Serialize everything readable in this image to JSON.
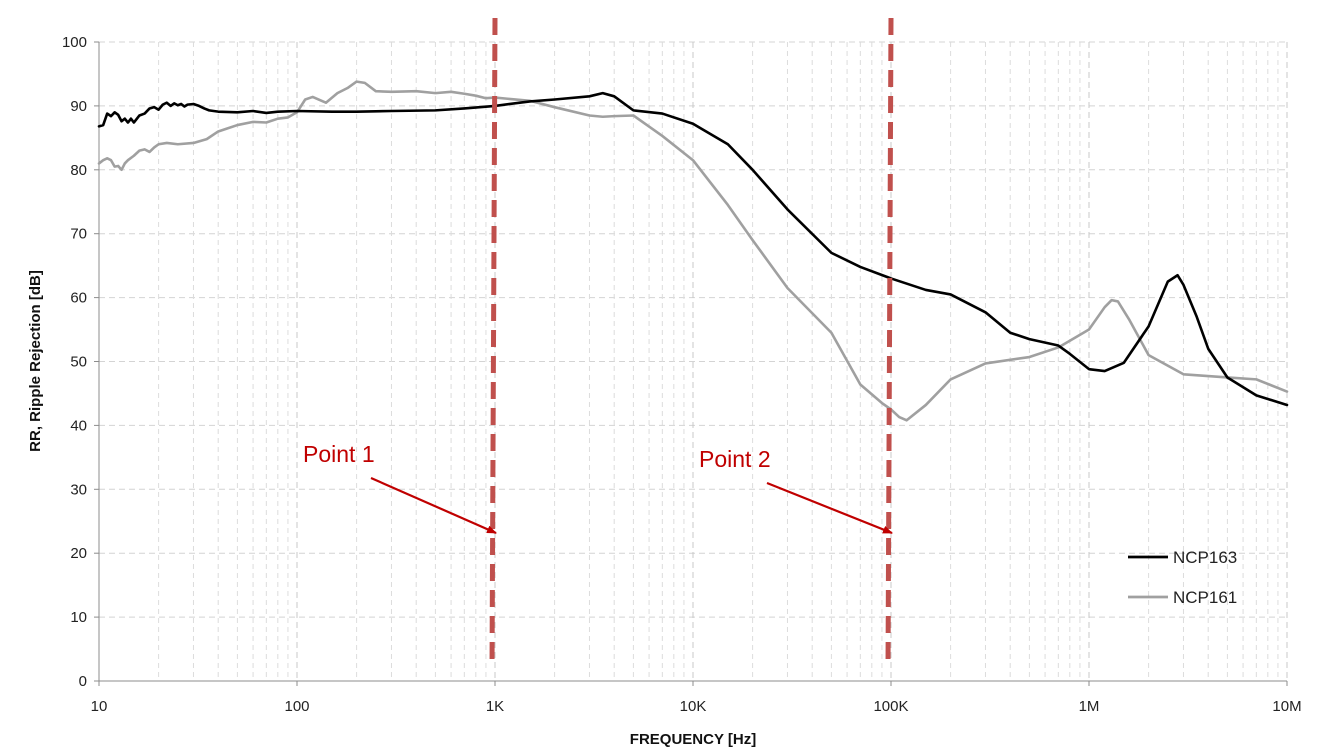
{
  "chart_data": {
    "type": "line",
    "title": "",
    "xlabel": "FREQUENCY [Hz]",
    "ylabel": "RR, Ripple Rejection [dB]",
    "xscale": "log",
    "xlim": [
      10,
      10000000
    ],
    "ylim": [
      0,
      100
    ],
    "x_tick_labels": [
      {
        "value": 10,
        "label": "10"
      },
      {
        "value": 100,
        "label": "100"
      },
      {
        "value": 1000,
        "label": "1K"
      },
      {
        "value": 10000,
        "label": "10K"
      },
      {
        "value": 100000,
        "label": "100K"
      },
      {
        "value": 1000000,
        "label": "1M"
      },
      {
        "value": 10000000,
        "label": "10M"
      }
    ],
    "y_ticks": [
      0,
      10,
      20,
      30,
      40,
      50,
      60,
      70,
      80,
      90,
      100
    ],
    "grid": true,
    "legend_position": "bottom-right",
    "series": [
      {
        "name": "NCP163",
        "color": "#000000",
        "x": [
          10,
          10.5,
          11,
          11.5,
          12,
          12.5,
          13,
          13.5,
          14,
          14.5,
          15,
          16,
          17,
          18,
          19,
          20,
          21,
          22,
          23,
          24,
          25,
          26,
          27,
          28,
          30,
          32,
          34,
          36,
          40,
          50,
          60,
          70,
          80,
          100,
          150,
          200,
          300,
          500,
          700,
          1000,
          1500,
          2000,
          3000,
          3500,
          4000,
          5000,
          7000,
          10000,
          15000,
          20000,
          30000,
          50000,
          70000,
          100000,
          150000,
          200000,
          300000,
          400000,
          500000,
          700000,
          800000,
          1000000,
          1200000,
          1500000,
          2000000,
          2500000,
          2800000,
          3000000,
          3500000,
          4000000,
          5000000,
          7000000,
          10000000
        ],
        "y": [
          86.8,
          87,
          88.8,
          88.4,
          89,
          88.6,
          87.6,
          88,
          87.4,
          88,
          87.4,
          88.5,
          88.8,
          89.6,
          89.8,
          89.4,
          90.2,
          90.5,
          90,
          90.4,
          90.1,
          90.3,
          89.9,
          90.2,
          90.3,
          90,
          89.6,
          89.3,
          89.1,
          89,
          89.2,
          88.9,
          89.1,
          89.2,
          89.1,
          89.1,
          89.2,
          89.3,
          89.6,
          90,
          90.7,
          91,
          91.5,
          92,
          91.5,
          89.3,
          88.8,
          87.2,
          84,
          80,
          73.8,
          67,
          64.8,
          63,
          61.2,
          60.5,
          57.7,
          54.5,
          53.5,
          52.5,
          51.2,
          48.8,
          48.5,
          49.8,
          55.5,
          62.5,
          63.5,
          62,
          57,
          52,
          47.5,
          44.7,
          43.2
        ]
      },
      {
        "name": "NCP161",
        "color": "#a0a0a0",
        "x": [
          10,
          10.5,
          11,
          11.5,
          12,
          12.5,
          13,
          13.5,
          14,
          15,
          16,
          17,
          18,
          19,
          20,
          22,
          25,
          30,
          35,
          40,
          50,
          60,
          70,
          80,
          90,
          100,
          110,
          120,
          140,
          160,
          180,
          200,
          220,
          250,
          300,
          400,
          500,
          600,
          700,
          800,
          900,
          1000,
          1500,
          2000,
          3000,
          3500,
          4000,
          5000,
          7000,
          10000,
          15000,
          20000,
          30000,
          50000,
          70000,
          90000,
          100000,
          110000,
          120000,
          150000,
          200000,
          300000,
          500000,
          700000,
          1000000,
          1200000,
          1300000,
          1400000,
          1600000,
          2000000,
          3000000,
          5000000,
          7000000,
          10000000
        ],
        "y": [
          81,
          81.5,
          81.8,
          81.5,
          80.5,
          80.6,
          80,
          81,
          81.5,
          82.2,
          83,
          83.2,
          82.8,
          83.5,
          84,
          84.2,
          84.0,
          84.2,
          84.8,
          86,
          87,
          87.5,
          87.4,
          88,
          88.2,
          89,
          91,
          91.4,
          90.5,
          92,
          92.8,
          93.8,
          93.6,
          92.3,
          92.2,
          92.3,
          92,
          92.2,
          91.9,
          91.6,
          91.2,
          91.3,
          90.8,
          89.8,
          88.5,
          88.3,
          88.4,
          88.5,
          85.3,
          81.5,
          74.5,
          69,
          61.5,
          54.5,
          46.4,
          43.5,
          42.5,
          41.3,
          40.8,
          43.2,
          47.2,
          49.7,
          50.7,
          52.2,
          55,
          58.5,
          59.6,
          59.4,
          56.5,
          51,
          48,
          47.5,
          47.2,
          45.3
        ]
      }
    ],
    "annotations": [
      {
        "label": "Point 1",
        "x": 1000,
        "color": "#c00000",
        "line_color": "#c0504d"
      },
      {
        "label": "Point 2",
        "x": 100000,
        "color": "#c00000",
        "line_color": "#c0504d"
      }
    ]
  }
}
